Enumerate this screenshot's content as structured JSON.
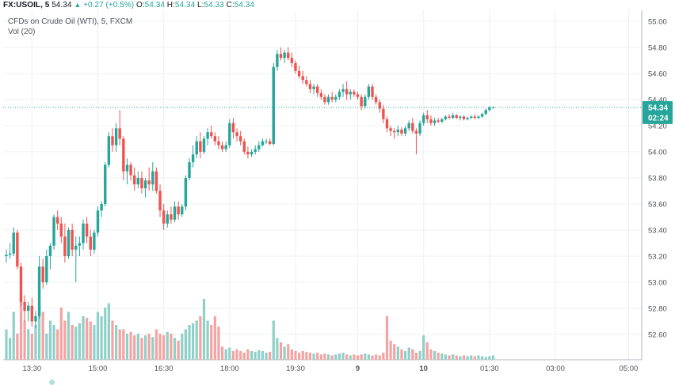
{
  "header": {
    "symbol": "FX:USOIL, 5",
    "last": "54.34",
    "change": "+0.27 (+0.5%)",
    "o_label": "O:",
    "o": "54.34",
    "h_label": "H:",
    "h": "54.34",
    "l_label": "L:",
    "l": "54.33",
    "c_label": "C:",
    "c": "54.34"
  },
  "subtitle": "CFDs on Crude Oil (WTI), 5, FXCM",
  "volume_label": "Vol (20)",
  "badges": {
    "price": "54.34",
    "countdown": "02:24"
  },
  "colors": {
    "up": "#26a69a",
    "down": "#ef5350",
    "vol_up": "#8fd0c8",
    "vol_down": "#f4a3a2",
    "grid": "#eef0f3",
    "price_line": "#26a69a"
  },
  "icons": [
    "up-triangle-icon"
  ],
  "chart_data": {
    "type": "candlestick",
    "title": "CFDs on Crude Oil (WTI), 5, FXCM",
    "ylim": [
      52.5,
      55.1
    ],
    "y_ticks": [
      "55.00",
      "54.80",
      "54.60",
      "54.40",
      "54.20",
      "54.00",
      "53.80",
      "53.60",
      "53.40",
      "53.20",
      "53.00",
      "52.80",
      "52.60"
    ],
    "x_ticks": [
      "13:30",
      "15:00",
      "16:30",
      "18:00",
      "19:30",
      "9",
      "10",
      "01:30",
      "03:00",
      "05:00"
    ],
    "x_tick_index": [
      7,
      25,
      43,
      61,
      79,
      96,
      114,
      132,
      150,
      170
    ],
    "last_price": 54.34,
    "grid": true,
    "candles": [
      [
        53.2,
        53.25,
        53.15,
        53.21
      ],
      [
        53.21,
        53.3,
        53.18,
        53.22
      ],
      [
        53.22,
        53.42,
        53.2,
        53.38
      ],
      [
        53.38,
        53.4,
        53.1,
        53.12
      ],
      [
        53.12,
        53.15,
        52.82,
        52.85
      ],
      [
        52.85,
        52.9,
        52.7,
        52.78
      ],
      [
        52.78,
        52.85,
        52.7,
        52.82
      ],
      [
        52.82,
        52.88,
        52.66,
        52.7
      ],
      [
        52.7,
        52.78,
        52.65,
        52.74
      ],
      [
        52.74,
        53.2,
        52.72,
        53.12
      ],
      [
        53.12,
        53.18,
        52.95,
        53.0
      ],
      [
        53.0,
        53.25,
        52.98,
        53.2
      ],
      [
        53.2,
        53.3,
        53.1,
        53.28
      ],
      [
        53.28,
        53.52,
        53.25,
        53.5
      ],
      [
        53.5,
        53.55,
        53.4,
        53.45
      ],
      [
        53.45,
        53.5,
        53.3,
        53.35
      ],
      [
        53.35,
        53.45,
        53.15,
        53.2
      ],
      [
        53.2,
        53.42,
        53.18,
        53.4
      ],
      [
        53.4,
        53.45,
        53.2,
        53.25
      ],
      [
        53.25,
        53.35,
        53.0,
        53.28
      ],
      [
        53.28,
        53.35,
        53.2,
        53.3
      ],
      [
        53.3,
        53.48,
        53.25,
        53.45
      ],
      [
        53.45,
        53.5,
        53.3,
        53.35
      ],
      [
        53.35,
        53.4,
        53.2,
        53.25
      ],
      [
        53.25,
        53.4,
        53.22,
        53.38
      ],
      [
        53.38,
        53.58,
        53.35,
        53.55
      ],
      [
        53.55,
        53.62,
        53.5,
        53.6
      ],
      [
        53.6,
        53.92,
        53.58,
        53.9
      ],
      [
        53.9,
        54.15,
        53.88,
        54.12
      ],
      [
        54.12,
        54.18,
        54.0,
        54.05
      ],
      [
        54.05,
        54.22,
        54.0,
        54.18
      ],
      [
        54.18,
        54.32,
        54.05,
        54.1
      ],
      [
        54.1,
        54.12,
        53.78,
        53.85
      ],
      [
        53.85,
        53.95,
        53.75,
        53.9
      ],
      [
        53.9,
        53.92,
        53.78,
        53.82
      ],
      [
        53.82,
        53.88,
        53.7,
        53.75
      ],
      [
        53.75,
        53.85,
        53.72,
        53.8
      ],
      [
        53.8,
        53.85,
        53.68,
        53.72
      ],
      [
        53.72,
        53.8,
        53.65,
        53.78
      ],
      [
        53.78,
        53.88,
        53.7,
        53.75
      ],
      [
        53.75,
        53.92,
        53.7,
        53.85
      ],
      [
        53.85,
        53.88,
        53.68,
        53.7
      ],
      [
        53.7,
        53.75,
        53.5,
        53.55
      ],
      [
        53.55,
        53.6,
        53.4,
        53.45
      ],
      [
        53.45,
        53.55,
        53.42,
        53.52
      ],
      [
        53.52,
        53.58,
        53.45,
        53.48
      ],
      [
        53.48,
        53.62,
        53.46,
        53.58
      ],
      [
        53.58,
        53.62,
        53.48,
        53.52
      ],
      [
        53.52,
        53.6,
        53.5,
        53.58
      ],
      [
        53.58,
        53.82,
        53.55,
        53.8
      ],
      [
        53.8,
        53.95,
        53.78,
        53.92
      ],
      [
        53.92,
        54.05,
        53.88,
        53.98
      ],
      [
        53.98,
        54.12,
        53.95,
        54.08
      ],
      [
        54.08,
        54.15,
        53.95,
        54.0
      ],
      [
        54.0,
        54.12,
        53.98,
        54.1
      ],
      [
        54.1,
        54.18,
        54.05,
        54.15
      ],
      [
        54.15,
        54.2,
        54.1,
        54.12
      ],
      [
        54.12,
        54.15,
        54.05,
        54.08
      ],
      [
        54.08,
        54.12,
        54.02,
        54.05
      ],
      [
        54.05,
        54.08,
        54.0,
        54.02
      ],
      [
        54.02,
        54.08,
        54.0,
        54.05
      ],
      [
        54.05,
        54.25,
        54.03,
        54.22
      ],
      [
        54.22,
        54.26,
        54.1,
        54.15
      ],
      [
        54.15,
        54.18,
        54.08,
        54.12
      ],
      [
        54.12,
        54.16,
        54.05,
        54.08
      ],
      [
        54.08,
        54.1,
        53.98,
        54.0
      ],
      [
        54.0,
        54.04,
        53.95,
        53.98
      ],
      [
        53.98,
        54.02,
        53.96,
        54.0
      ],
      [
        54.0,
        54.05,
        53.98,
        54.02
      ],
      [
        54.02,
        54.08,
        54.0,
        54.05
      ],
      [
        54.05,
        54.1,
        54.04,
        54.08
      ],
      [
        54.08,
        54.1,
        54.06,
        54.08
      ],
      [
        54.08,
        54.1,
        54.05,
        54.06
      ],
      [
        54.06,
        54.68,
        54.05,
        54.65
      ],
      [
        54.65,
        54.78,
        54.62,
        54.75
      ],
      [
        54.75,
        54.8,
        54.7,
        54.72
      ],
      [
        54.72,
        54.78,
        54.68,
        54.76
      ],
      [
        54.76,
        54.8,
        54.7,
        54.72
      ],
      [
        54.72,
        54.76,
        54.65,
        54.68
      ],
      [
        54.68,
        54.7,
        54.6,
        54.62
      ],
      [
        54.62,
        54.66,
        54.56,
        54.58
      ],
      [
        54.58,
        54.62,
        54.52,
        54.55
      ],
      [
        54.55,
        54.58,
        54.5,
        54.52
      ],
      [
        54.52,
        54.55,
        54.45,
        54.48
      ],
      [
        54.48,
        54.52,
        54.44,
        54.5
      ],
      [
        54.5,
        54.52,
        54.42,
        54.45
      ],
      [
        54.45,
        54.48,
        54.4,
        54.42
      ],
      [
        54.42,
        54.44,
        54.36,
        54.38
      ],
      [
        54.38,
        54.44,
        54.36,
        54.42
      ],
      [
        54.42,
        54.46,
        54.38,
        54.4
      ],
      [
        54.4,
        54.44,
        54.38,
        54.42
      ],
      [
        54.42,
        54.48,
        54.4,
        54.46
      ],
      [
        54.46,
        54.52,
        54.42,
        54.48
      ],
      [
        54.48,
        54.54,
        54.4,
        54.44
      ],
      [
        54.44,
        54.48,
        54.4,
        54.46
      ],
      [
        54.46,
        54.48,
        54.42,
        54.44
      ],
      [
        54.44,
        54.46,
        54.4,
        54.42
      ],
      [
        54.42,
        54.44,
        54.32,
        54.35
      ],
      [
        54.35,
        54.44,
        54.33,
        54.42
      ],
      [
        54.42,
        54.52,
        54.4,
        54.5
      ],
      [
        54.5,
        54.52,
        54.4,
        54.42
      ],
      [
        54.42,
        54.44,
        54.36,
        54.38
      ],
      [
        54.38,
        54.4,
        54.3,
        54.33
      ],
      [
        54.33,
        54.36,
        54.22,
        54.25
      ],
      [
        54.25,
        54.27,
        54.15,
        54.18
      ],
      [
        54.18,
        54.2,
        54.12,
        54.16
      ],
      [
        54.16,
        54.18,
        54.1,
        54.15
      ],
      [
        54.15,
        54.2,
        54.12,
        54.17
      ],
      [
        54.17,
        54.19,
        54.12,
        54.14
      ],
      [
        54.14,
        54.2,
        54.12,
        54.18
      ],
      [
        54.18,
        54.24,
        54.16,
        54.22
      ],
      [
        54.22,
        54.26,
        54.14,
        54.16
      ],
      [
        54.16,
        54.18,
        53.98,
        54.14
      ],
      [
        54.14,
        54.24,
        54.12,
        54.22
      ],
      [
        54.22,
        54.3,
        54.2,
        54.28
      ],
      [
        54.28,
        54.32,
        54.22,
        54.25
      ],
      [
        54.25,
        54.28,
        54.2,
        54.22
      ],
      [
        54.22,
        54.26,
        54.2,
        54.24
      ],
      [
        54.24,
        54.26,
        54.22,
        54.23
      ],
      [
        54.23,
        54.26,
        54.22,
        54.25
      ],
      [
        54.25,
        54.28,
        54.24,
        54.27
      ],
      [
        54.27,
        54.29,
        54.25,
        54.26
      ],
      [
        54.26,
        54.3,
        54.25,
        54.28
      ],
      [
        54.28,
        54.29,
        54.25,
        54.26
      ],
      [
        54.26,
        54.28,
        54.24,
        54.27
      ],
      [
        54.27,
        54.28,
        54.24,
        54.25
      ],
      [
        54.25,
        54.27,
        54.24,
        54.26
      ],
      [
        54.26,
        54.28,
        54.25,
        54.27
      ],
      [
        54.27,
        54.29,
        54.25,
        54.26
      ],
      [
        54.26,
        54.28,
        54.25,
        54.27
      ],
      [
        54.27,
        54.3,
        54.26,
        54.29
      ],
      [
        54.29,
        54.33,
        54.28,
        54.32
      ],
      [
        54.32,
        54.35,
        54.31,
        54.34
      ],
      [
        54.34,
        54.35,
        54.33,
        54.34
      ]
    ],
    "volumes": [
      0.35,
      0.25,
      0.55,
      0.3,
      0.75,
      0.45,
      0.35,
      0.3,
      0.4,
      0.65,
      0.55,
      0.3,
      0.45,
      0.4,
      0.35,
      0.6,
      0.45,
      0.55,
      0.4,
      0.38,
      0.42,
      0.5,
      0.48,
      0.44,
      0.4,
      0.55,
      0.5,
      0.6,
      0.65,
      0.45,
      0.4,
      0.35,
      0.35,
      0.3,
      0.32,
      0.28,
      0.3,
      0.25,
      0.28,
      0.3,
      0.26,
      0.35,
      0.3,
      0.28,
      0.32,
      0.3,
      0.25,
      0.22,
      0.3,
      0.35,
      0.4,
      0.42,
      0.45,
      0.5,
      0.7,
      0.45,
      0.4,
      0.5,
      0.38,
      0.15,
      0.12,
      0.14,
      0.1,
      0.12,
      0.1,
      0.08,
      0.12,
      0.1,
      0.09,
      0.11,
      0.1,
      0.08,
      0.09,
      0.45,
      0.25,
      0.2,
      0.15,
      0.18,
      0.12,
      0.1,
      0.08,
      0.1,
      0.09,
      0.08,
      0.07,
      0.08,
      0.06,
      0.07,
      0.06,
      0.05,
      0.06,
      0.07,
      0.08,
      0.06,
      0.05,
      0.06,
      0.05,
      0.06,
      0.07,
      0.06,
      0.05,
      0.06,
      0.05,
      0.08,
      0.5,
      0.22,
      0.18,
      0.15,
      0.12,
      0.1,
      0.14,
      0.12,
      0.08,
      0.1,
      0.28,
      0.2,
      0.12,
      0.1,
      0.08,
      0.07,
      0.06,
      0.05,
      0.06,
      0.05,
      0.04,
      0.05,
      0.04,
      0.05,
      0.04,
      0.05,
      0.04,
      0.03,
      0.04,
      0.05,
      0.03
    ]
  }
}
